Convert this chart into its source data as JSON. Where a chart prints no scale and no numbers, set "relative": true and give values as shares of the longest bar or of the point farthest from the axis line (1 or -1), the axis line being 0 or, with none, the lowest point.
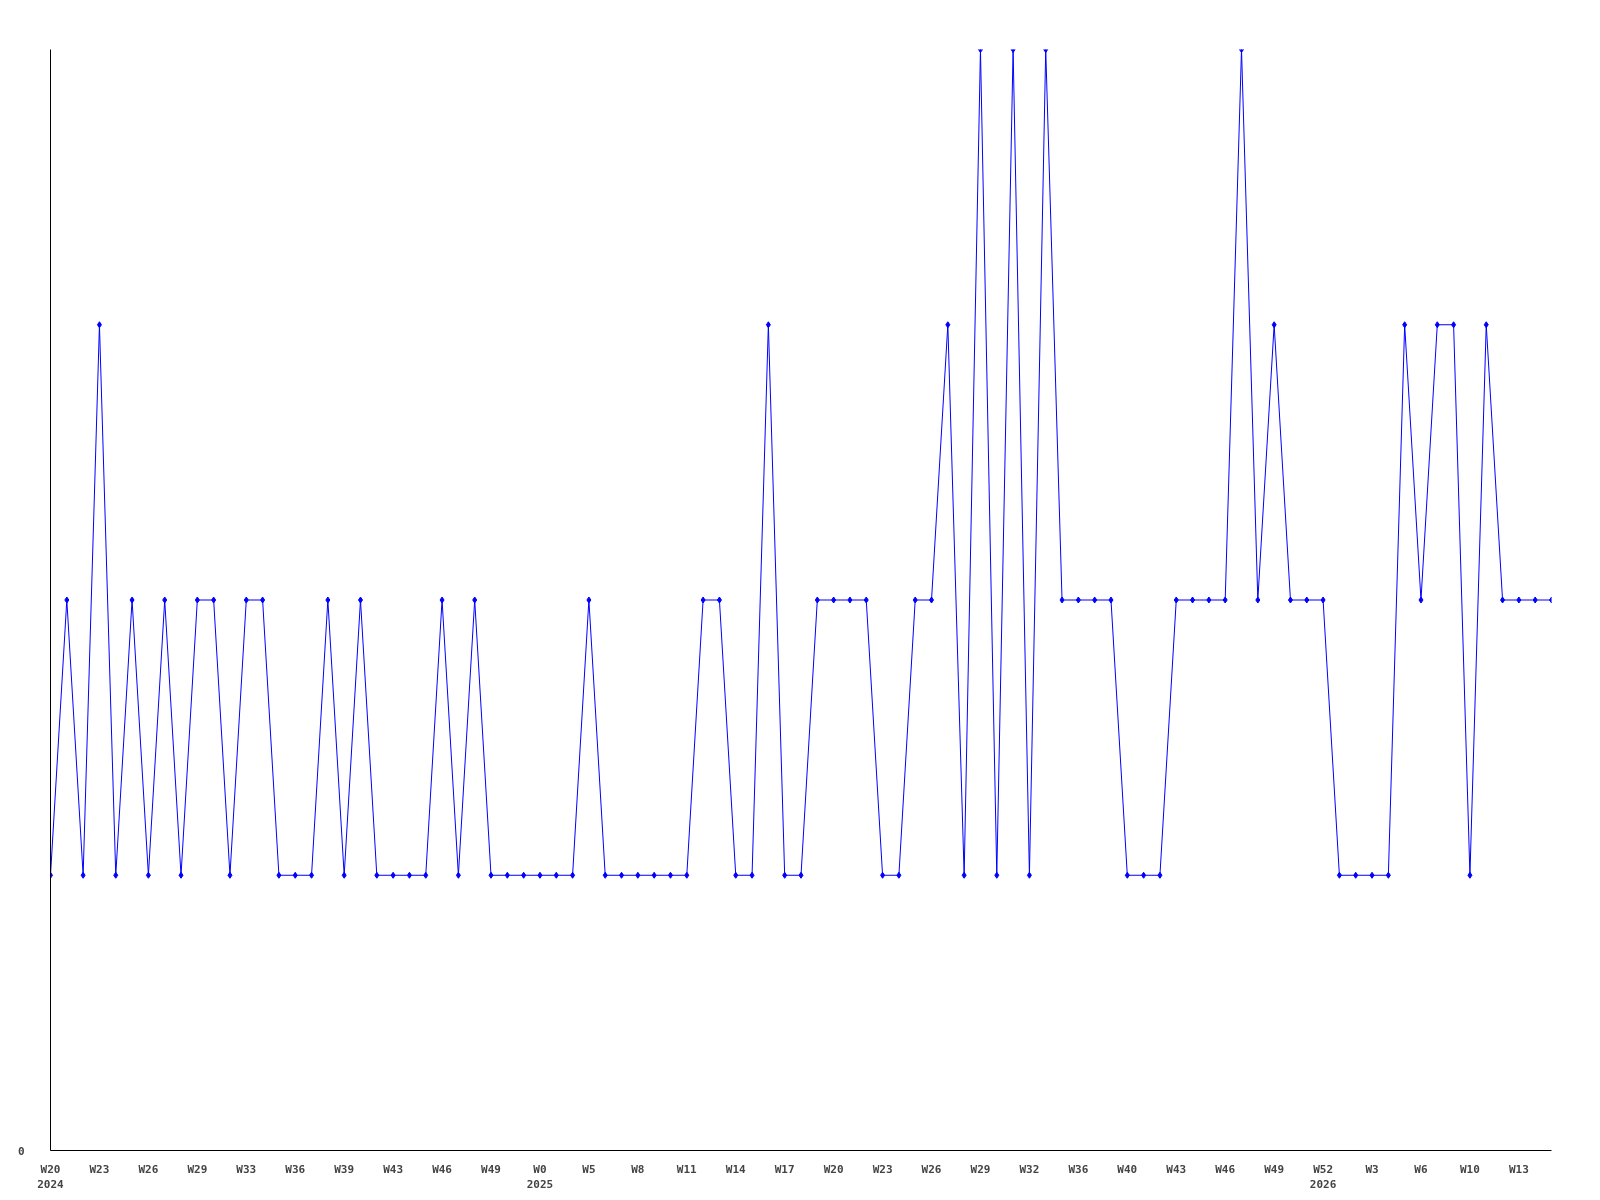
{
  "chart_data": {
    "type": "line",
    "relative": true,
    "marker": "diamond",
    "grid": false,
    "annotations": [
      "0"
    ],
    "categories": [
      "W20\n2024",
      null,
      null,
      "W23",
      null,
      null,
      "W26",
      null,
      null,
      "W29",
      null,
      null,
      "W33",
      null,
      null,
      "W36",
      null,
      null,
      "W39",
      null,
      null,
      "W43",
      null,
      null,
      "W46",
      null,
      null,
      "W49",
      null,
      null,
      "W0\n2025",
      null,
      null,
      "W5",
      null,
      null,
      "W8",
      null,
      null,
      "W11",
      null,
      null,
      "W14",
      null,
      null,
      "W17",
      null,
      null,
      "W20",
      null,
      null,
      "W23",
      null,
      null,
      "W26",
      null,
      null,
      "W29",
      null,
      null,
      "W32",
      null,
      null,
      "W36",
      null,
      null,
      "W40",
      null,
      null,
      "W43",
      null,
      null,
      "W46",
      null,
      null,
      "W49",
      null,
      null,
      "W52\n2026",
      null,
      null,
      "W3",
      null,
      null,
      "W6",
      null,
      null,
      "W10",
      null,
      null,
      "W13",
      null,
      null
    ],
    "series": [
      {
        "color": "#0000ff",
        "values": [
          0.25,
          0.5,
          0.25,
          0.75,
          0.25,
          0.5,
          0.25,
          0.5,
          0.25,
          0.5,
          0.5,
          0.25,
          0.5,
          0.5,
          0.25,
          0.25,
          0.25,
          0.5,
          0.25,
          0.5,
          0.25,
          0.25,
          0.25,
          0.25,
          0.5,
          0.25,
          0.5,
          0.25,
          0.25,
          0.25,
          0.25,
          0.25,
          0.25,
          0.5,
          0.25,
          0.25,
          0.25,
          0.25,
          0.25,
          0.25,
          0.5,
          0.5,
          0.25,
          0.25,
          0.75,
          0.25,
          0.25,
          0.5,
          0.5,
          0.5,
          0.5,
          0.25,
          0.25,
          0.5,
          0.5,
          0.75,
          0.25,
          1,
          0.25,
          1,
          0.25,
          1,
          0.5,
          0.5,
          0.5,
          0.5,
          0.25,
          0.25,
          0.25,
          0.5,
          0.5,
          0.5,
          0.5,
          1,
          0.5,
          0.75,
          0.5,
          0.5,
          0.5,
          0.25,
          0.25,
          0.25,
          0.25,
          0.75,
          0.5,
          0.75,
          0.75,
          0.25,
          0.75,
          0.5,
          0.5,
          0.5,
          0.5
        ]
      }
    ]
  }
}
